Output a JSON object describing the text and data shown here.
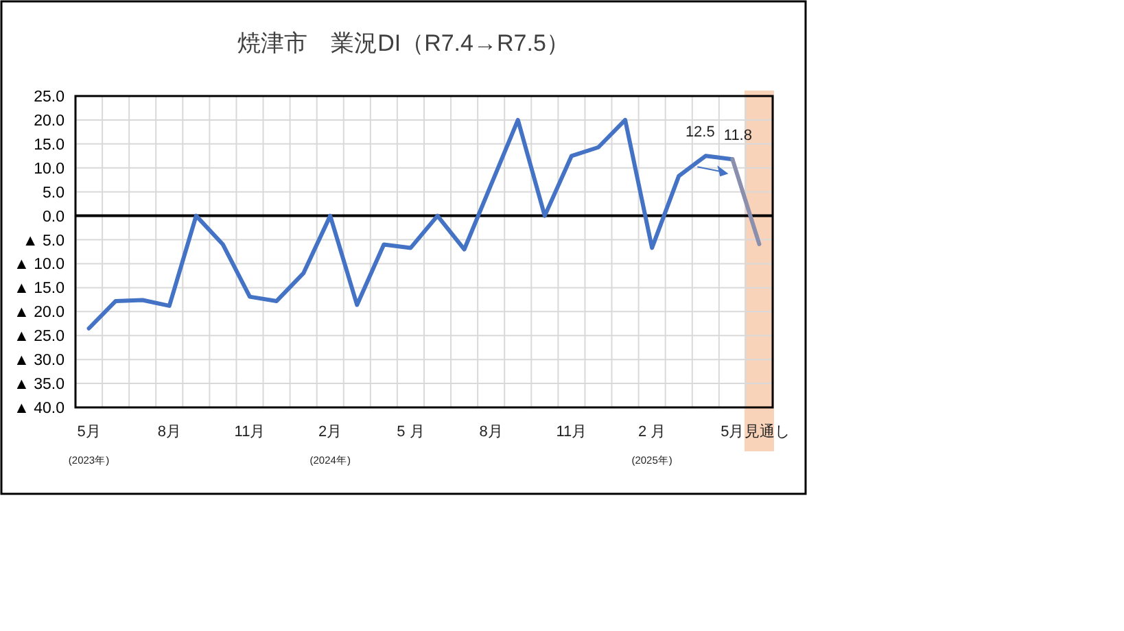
{
  "chart_data": {
    "type": "line",
    "title": "焼津市　業況DI（R7.4→R7.5）",
    "categories": [
      "5月\n(2023年)",
      null,
      null,
      "8月",
      null,
      null,
      "11月",
      null,
      null,
      "2月\n(2024年)",
      null,
      null,
      "5 月",
      null,
      null,
      "8月",
      null,
      null,
      "11月",
      null,
      null,
      "2 月\n(2025年)",
      null,
      null,
      "5月",
      "見通し"
    ],
    "series": [
      {
        "color": "#4472c4",
        "values": [
          -23.5,
          -17.8,
          -17.6,
          -18.8,
          0,
          -6,
          -16.9,
          -17.8,
          -12,
          0,
          -18.6,
          -6,
          -6.7,
          0,
          -7,
          6.5,
          20,
          0,
          12.5,
          14.3,
          20,
          -6.7,
          8.3,
          12.5,
          11.8,
          null
        ]
      },
      {
        "color": "#8b8fae",
        "values": [
          null,
          null,
          null,
          null,
          null,
          null,
          null,
          null,
          null,
          null,
          null,
          null,
          null,
          null,
          null,
          null,
          null,
          null,
          null,
          null,
          null,
          null,
          null,
          null,
          11.8,
          -5.9
        ]
      }
    ],
    "ylim": [
      -40,
      25
    ],
    "yticks": [
      {
        "value": 25,
        "label": "25.0"
      },
      {
        "value": 20,
        "label": "20.0"
      },
      {
        "value": 15,
        "label": "15.0"
      },
      {
        "value": 10,
        "label": "10.0"
      },
      {
        "value": 5,
        "label": "5.0"
      },
      {
        "value": 0,
        "label": "0.0"
      },
      {
        "value": -5,
        "label": "▲ 5.0"
      },
      {
        "value": -10,
        "label": "▲ 10.0"
      },
      {
        "value": -15,
        "label": "▲ 15.0"
      },
      {
        "value": -20,
        "label": "▲ 20.0"
      },
      {
        "value": -25,
        "label": "▲ 25.0"
      },
      {
        "value": -30,
        "label": "▲ 30.0"
      },
      {
        "value": -35,
        "label": "▲ 35.0"
      },
      {
        "value": -40,
        "label": "▲ 40.0"
      }
    ],
    "ref_lines": [
      {
        "axis": "y",
        "value": 0,
        "color": "#000000"
      }
    ],
    "bands": [
      {
        "axis": "x",
        "from": "見通し",
        "to": "見通し",
        "color": "#f8cbad"
      }
    ],
    "annotations": [
      {
        "text": "12.5",
        "y": 12.5
      },
      {
        "text": "11.8",
        "x": "5月",
        "y": 11.8
      }
    ],
    "grid": true,
    "marker": "none",
    "line_style": "solid"
  }
}
